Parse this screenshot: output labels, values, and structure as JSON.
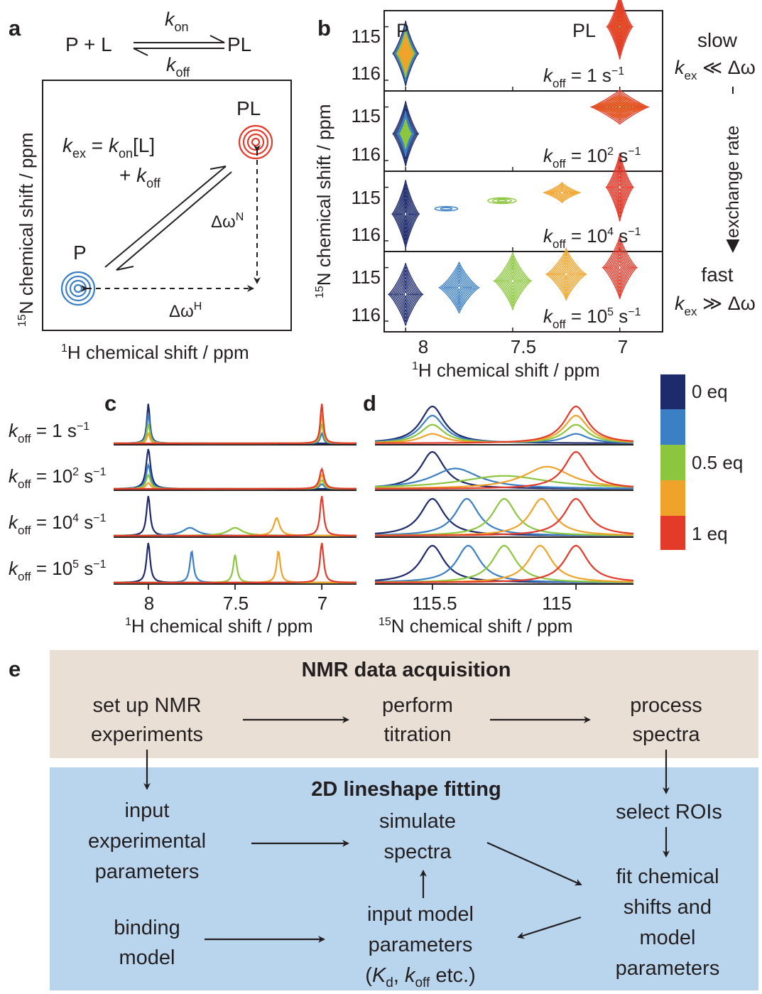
{
  "colors": {
    "eq0": "#1d2a6b",
    "eq025": "#3b7fc4",
    "eq05": "#8cc63f",
    "eq075": "#f0a32a",
    "eq1": "#e33a2a",
    "acquisition_bg": "#eadfd4",
    "fitting_bg": "#b9d5ee"
  },
  "panel_letters": {
    "a": "a",
    "b": "b",
    "c": "c",
    "d": "d",
    "e": "e"
  },
  "panel_a": {
    "reaction_left": "P + L",
    "reaction_right": "PL",
    "kon_k": "k",
    "kon_sub": "on",
    "koff_k": "k",
    "koff_sub": "off",
    "label_P": "P",
    "label_PL": "PL",
    "kex_k": "k",
    "kex_sub": "ex",
    "kex_mid": " = ",
    "kex_kon_k": "k",
    "kex_kon_sub": "on",
    "kex_L": "[L]",
    "kex_plus": "+ ",
    "kex_koff_k": "k",
    "kex_koff_sub": "off",
    "dwN_main": "Δω",
    "dwN_sup": "N",
    "dwH_main": "Δω",
    "dwH_sup": "H",
    "ylabel_sup": "15",
    "ylabel_rest": "N chemical shift / ppm",
    "xlabel_sup": "1",
    "xlabel_rest": "H chemical shift / ppm"
  },
  "panel_b": {
    "ylabel_sup": "15",
    "ylabel_rest": "N chemical shift / ppm",
    "xlabel_sup": "1",
    "xlabel_rest": "H chemical shift / ppm",
    "ytick_115": "115",
    "ytick_116": "116",
    "xticks": [
      "8",
      "7.5",
      "7"
    ],
    "label_P": "P",
    "label_PL": "PL",
    "rows": [
      {
        "k": "k",
        "sub": "off",
        "eq": " = ",
        "base": "1",
        "sup": "",
        "unit": " s",
        "unit_sup": "−1"
      },
      {
        "k": "k",
        "sub": "off",
        "eq": " = ",
        "base": "10",
        "sup": "2",
        "unit": " s",
        "unit_sup": "−1"
      },
      {
        "k": "k",
        "sub": "off",
        "eq": " = ",
        "base": "10",
        "sup": "4",
        "unit": " s",
        "unit_sup": "−1"
      },
      {
        "k": "k",
        "sub": "off",
        "eq": " = ",
        "base": "10",
        "sup": "5",
        "unit": " s",
        "unit_sup": "−1"
      }
    ],
    "slow": "slow",
    "slow_k": "k",
    "slow_sub": "ex",
    "slow_rel": " ≪ Δω",
    "exchange_rate": "exchange rate",
    "fast": "fast",
    "fast_k": "k",
    "fast_sub": "ex",
    "fast_rel": " ≫ Δω"
  },
  "panel_c": {
    "rows": [
      {
        "k": "k",
        "sub": "off",
        "eq": " = ",
        "base": "1",
        "sup": "",
        "unit": " s",
        "unit_sup": "−1"
      },
      {
        "k": "k",
        "sub": "off",
        "eq": " = ",
        "base": "10",
        "sup": "2",
        "unit": " s",
        "unit_sup": "−1"
      },
      {
        "k": "k",
        "sub": "off",
        "eq": " = ",
        "base": "10",
        "sup": "4",
        "unit": " s",
        "unit_sup": "−1"
      },
      {
        "k": "k",
        "sub": "off",
        "eq": " = ",
        "base": "10",
        "sup": "5",
        "unit": " s",
        "unit_sup": "−1"
      }
    ],
    "xticks": [
      "8",
      "7.5",
      "7"
    ],
    "xlabel_sup": "1",
    "xlabel_rest": "H chemical shift / ppm"
  },
  "panel_d": {
    "xticks": [
      "115.5",
      "115"
    ],
    "xlabel_sup": "15",
    "xlabel_rest": "N chemical shift / ppm"
  },
  "legend": {
    "labels": [
      "0 eq",
      "0.5 eq",
      "1 eq"
    ]
  },
  "panel_e": {
    "acquisition_title": "NMR data acquisition",
    "fitting_title": "2D lineshape fitting",
    "setup_1": "set up NMR",
    "setup_2": "experiments",
    "titration_1": "perform",
    "titration_2": "titration",
    "process_1": "process",
    "process_2": "spectra",
    "input_exp_1": "input",
    "input_exp_2": "experimental",
    "input_exp_3": "parameters",
    "simulate_1": "simulate",
    "simulate_2": "spectra",
    "select_rois": "select ROIs",
    "fit_1": "fit chemical",
    "fit_2": "shifts and",
    "fit_3": "model",
    "fit_4": "parameters",
    "binding_1": "binding",
    "binding_2": "model",
    "input_model_1": "input model",
    "input_model_2": "parameters",
    "input_model_3_open": "(",
    "input_model_3_Kd_k": "K",
    "input_model_3_Kd_sub": "d",
    "input_model_3_comma": ", ",
    "input_model_3_koff_k": "k",
    "input_model_3_koff_sub": "off",
    "input_model_3_tail": " etc.)"
  },
  "chart_data": [
    {
      "type": "contour",
      "panel": "b",
      "x_axis": "1H chemical shift / ppm",
      "y_axis": "15N chemical shift / ppm",
      "xlim": [
        8.1,
        6.8
      ],
      "ylim": [
        116.2,
        114.7
      ],
      "series_colors": [
        "0 eq",
        "0.25 eq",
        "0.5 eq",
        "0.75 eq",
        "1 eq"
      ],
      "rows": [
        {
          "koff": "1 s−1",
          "peaks": [
            {
              "eq": 0,
              "x": 8.0,
              "y": 115.5,
              "intensity": 1.0
            },
            {
              "eq": 0.25,
              "x": 8.0,
              "y": 115.5,
              "intensity": 0.75
            },
            {
              "eq": 0.5,
              "x": 8.0,
              "y": 115.5,
              "intensity": 0.5
            },
            {
              "eq": 0.75,
              "x": 8.0,
              "y": 115.5,
              "intensity": 0.25
            },
            {
              "eq": 0.25,
              "x": 7.0,
              "y": 115.0,
              "intensity": 0.25
            },
            {
              "eq": 0.5,
              "x": 7.0,
              "y": 115.0,
              "intensity": 0.5
            },
            {
              "eq": 0.75,
              "x": 7.0,
              "y": 115.0,
              "intensity": 0.75
            },
            {
              "eq": 1,
              "x": 7.0,
              "y": 115.0,
              "intensity": 1.0
            }
          ]
        },
        {
          "koff": "10^2 s−1",
          "peaks": [
            {
              "eq": 0,
              "x": 8.0,
              "y": 115.5
            },
            {
              "eq": 0.25,
              "x": 8.0,
              "y": 115.5
            },
            {
              "eq": 0.5,
              "x": 8.0,
              "y": 115.5
            },
            {
              "eq": 0.5,
              "x": 7.0,
              "y": 115.0
            },
            {
              "eq": 0.75,
              "x": 7.0,
              "y": 115.0
            },
            {
              "eq": 1,
              "x": 7.0,
              "y": 115.0
            }
          ]
        },
        {
          "koff": "10^4 s−1",
          "peaks": [
            {
              "eq": 0,
              "x": 8.0,
              "y": 115.5
            },
            {
              "eq": 0.25,
              "x": 7.81,
              "y": 115.4
            },
            {
              "eq": 0.5,
              "x": 7.55,
              "y": 115.25
            },
            {
              "eq": 0.75,
              "x": 7.27,
              "y": 115.1
            },
            {
              "eq": 1,
              "x": 7.0,
              "y": 115.0
            }
          ]
        },
        {
          "koff": "10^5 s−1",
          "peaks": [
            {
              "eq": 0,
              "x": 8.0,
              "y": 115.5
            },
            {
              "eq": 0.25,
              "x": 7.75,
              "y": 115.375
            },
            {
              "eq": 0.5,
              "x": 7.5,
              "y": 115.25
            },
            {
              "eq": 0.75,
              "x": 7.25,
              "y": 115.125
            },
            {
              "eq": 1,
              "x": 7.0,
              "y": 115.0
            }
          ]
        }
      ]
    },
    {
      "type": "line",
      "panel": "c",
      "x_axis": "1H chemical shift / ppm",
      "xlim": [
        8.2,
        6.8
      ],
      "rows": [
        {
          "koff": "1 s−1",
          "series": [
            {
              "eq": 0,
              "peaks": [
                {
                  "x": 8.0,
                  "h": 1.0
                }
              ]
            },
            {
              "eq": 0.25,
              "peaks": [
                {
                  "x": 8.0,
                  "h": 0.75
                },
                {
                  "x": 7.0,
                  "h": 0.25
                }
              ]
            },
            {
              "eq": 0.5,
              "peaks": [
                {
                  "x": 8.0,
                  "h": 0.5
                },
                {
                  "x": 7.0,
                  "h": 0.5
                }
              ]
            },
            {
              "eq": 0.75,
              "peaks": [
                {
                  "x": 8.0,
                  "h": 0.25
                },
                {
                  "x": 7.0,
                  "h": 0.75
                }
              ]
            },
            {
              "eq": 1,
              "peaks": [
                {
                  "x": 7.0,
                  "h": 1.0
                }
              ]
            }
          ]
        },
        {
          "koff": "10^2 s−1",
          "series": [
            {
              "eq": 0,
              "peaks": [
                {
                  "x": 8.0,
                  "h": 1.0
                }
              ]
            },
            {
              "eq": 0.25,
              "peaks": [
                {
                  "x": 8.0,
                  "h": 0.6
                },
                {
                  "x": 7.0,
                  "h": 0.12
                }
              ]
            },
            {
              "eq": 0.5,
              "peaks": [
                {
                  "x": 8.0,
                  "h": 0.35
                },
                {
                  "x": 7.0,
                  "h": 0.22
                }
              ]
            },
            {
              "eq": 0.75,
              "peaks": [
                {
                  "x": 8.0,
                  "h": 0.15
                },
                {
                  "x": 7.0,
                  "h": 0.35
                }
              ]
            },
            {
              "eq": 1,
              "peaks": [
                {
                  "x": 7.0,
                  "h": 0.5
                }
              ]
            }
          ]
        },
        {
          "koff": "10^4 s−1",
          "series": [
            {
              "eq": 0,
              "peaks": [
                {
                  "x": 8.0,
                  "h": 1.0
                }
              ]
            },
            {
              "eq": 0.25,
              "peaks": [
                {
                  "x": 7.76,
                  "h": 0.2
                }
              ]
            },
            {
              "eq": 0.5,
              "peaks": [
                {
                  "x": 7.5,
                  "h": 0.2
                }
              ]
            },
            {
              "eq": 0.75,
              "peaks": [
                {
                  "x": 7.26,
                  "h": 0.45
                }
              ]
            },
            {
              "eq": 1,
              "peaks": [
                {
                  "x": 7.0,
                  "h": 1.0
                }
              ]
            }
          ]
        },
        {
          "koff": "10^5 s−1",
          "series": [
            {
              "eq": 0,
              "peaks": [
                {
                  "x": 8.0,
                  "h": 1.0
                }
              ]
            },
            {
              "eq": 0.25,
              "peaks": [
                {
                  "x": 7.75,
                  "h": 0.8
                }
              ]
            },
            {
              "eq": 0.5,
              "peaks": [
                {
                  "x": 7.5,
                  "h": 0.7
                }
              ]
            },
            {
              "eq": 0.75,
              "peaks": [
                {
                  "x": 7.25,
                  "h": 0.8
                }
              ]
            },
            {
              "eq": 1,
              "peaks": [
                {
                  "x": 7.0,
                  "h": 1.0
                }
              ]
            }
          ]
        }
      ]
    },
    {
      "type": "line",
      "panel": "d",
      "x_axis": "15N chemical shift / ppm",
      "xlim": [
        115.7,
        114.8
      ],
      "rows": [
        {
          "koff": "1 s−1",
          "series": [
            {
              "eq": 0,
              "peaks": [
                {
                  "x": 115.5,
                  "h": 1.0
                }
              ]
            },
            {
              "eq": 0.25,
              "peaks": [
                {
                  "x": 115.5,
                  "h": 0.75
                },
                {
                  "x": 115.0,
                  "h": 0.25
                }
              ]
            },
            {
              "eq": 0.5,
              "peaks": [
                {
                  "x": 115.5,
                  "h": 0.5
                },
                {
                  "x": 115.0,
                  "h": 0.5
                }
              ]
            },
            {
              "eq": 0.75,
              "peaks": [
                {
                  "x": 115.5,
                  "h": 0.25
                },
                {
                  "x": 115.0,
                  "h": 0.75
                }
              ]
            },
            {
              "eq": 1,
              "peaks": [
                {
                  "x": 115.0,
                  "h": 1.0
                }
              ]
            }
          ]
        },
        {
          "koff": "10^2 s−1",
          "series": [
            {
              "eq": 0,
              "peaks": [
                {
                  "x": 115.5,
                  "h": 1.0
                }
              ]
            },
            {
              "eq": 0.25,
              "peaks": [
                {
                  "x": 115.42,
                  "h": 0.55
                }
              ]
            },
            {
              "eq": 0.5,
              "peaks": [
                {
                  "x": 115.25,
                  "h": 0.35
                }
              ]
            },
            {
              "eq": 0.75,
              "peaks": [
                {
                  "x": 115.1,
                  "h": 0.6
                }
              ]
            },
            {
              "eq": 1,
              "peaks": [
                {
                  "x": 115.0,
                  "h": 1.0
                }
              ]
            }
          ]
        },
        {
          "koff": "10^4 s−1",
          "series": [
            {
              "eq": 0,
              "peaks": [
                {
                  "x": 115.5,
                  "h": 1.0
                }
              ]
            },
            {
              "eq": 0.25,
              "peaks": [
                {
                  "x": 115.38,
                  "h": 1.0
                }
              ]
            },
            {
              "eq": 0.5,
              "peaks": [
                {
                  "x": 115.25,
                  "h": 1.0
                }
              ]
            },
            {
              "eq": 0.75,
              "peaks": [
                {
                  "x": 115.12,
                  "h": 1.0
                }
              ]
            },
            {
              "eq": 1,
              "peaks": [
                {
                  "x": 115.0,
                  "h": 1.0
                }
              ]
            }
          ]
        },
        {
          "koff": "10^5 s−1",
          "series": [
            {
              "eq": 0,
              "peaks": [
                {
                  "x": 115.5,
                  "h": 1.0
                }
              ]
            },
            {
              "eq": 0.25,
              "peaks": [
                {
                  "x": 115.375,
                  "h": 1.0
                }
              ]
            },
            {
              "eq": 0.5,
              "peaks": [
                {
                  "x": 115.25,
                  "h": 1.0
                }
              ]
            },
            {
              "eq": 0.75,
              "peaks": [
                {
                  "x": 115.125,
                  "h": 1.0
                }
              ]
            },
            {
              "eq": 1,
              "peaks": [
                {
                  "x": 115.0,
                  "h": 1.0
                }
              ]
            }
          ]
        }
      ]
    }
  ]
}
